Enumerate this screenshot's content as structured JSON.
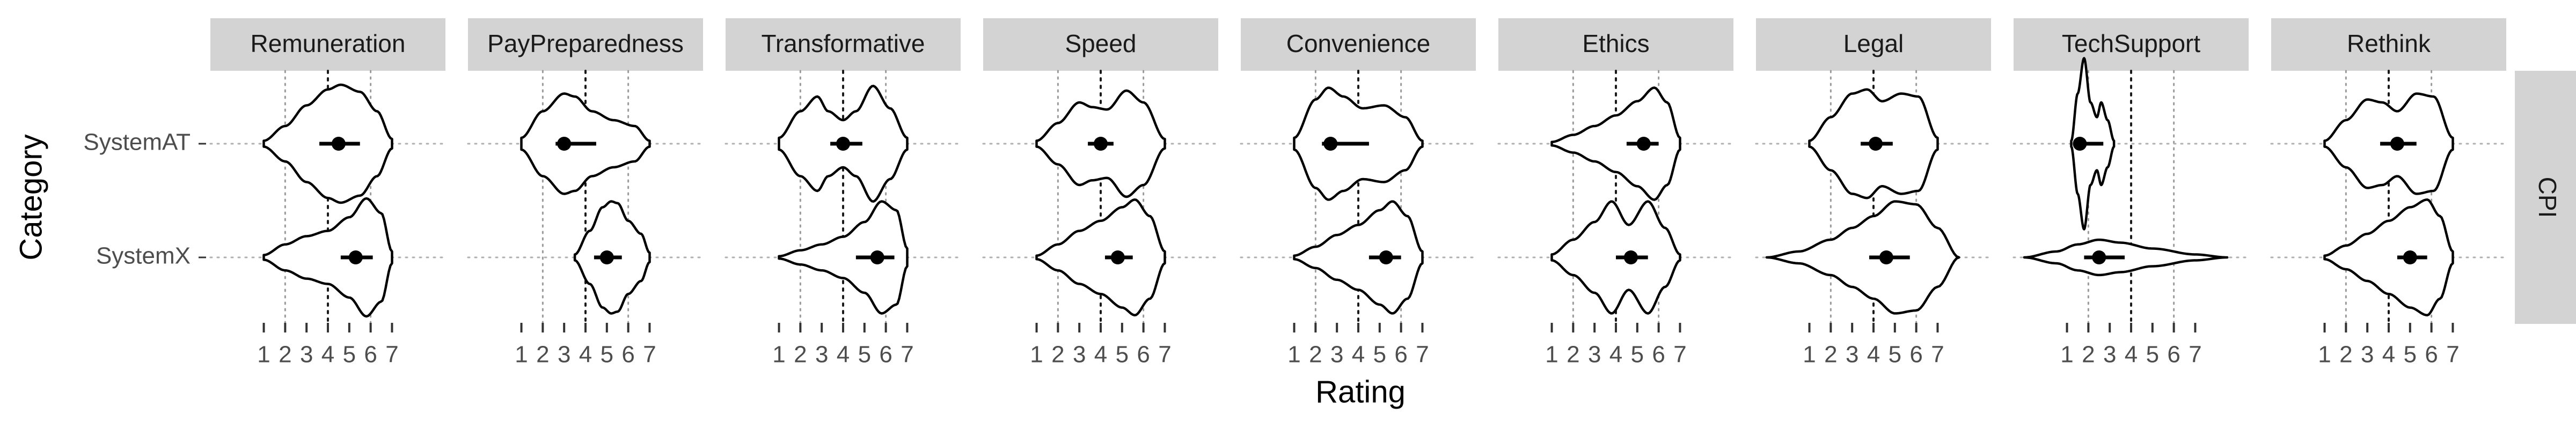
{
  "chart_data": {
    "type": "violin",
    "xlabel": "Rating",
    "ylabel": "Category",
    "row_strip": "CPI",
    "categories": [
      "SystemAT",
      "SystemX"
    ],
    "x_ticks": [
      1,
      2,
      3,
      4,
      5,
      6,
      7
    ],
    "x_tick_labels": [
      "1",
      "2",
      "3",
      "4",
      "5",
      "6",
      "7"
    ],
    "reference_lines": {
      "dotted": [
        2,
        6
      ],
      "dashed": [
        4
      ]
    },
    "panels": [
      {
        "name": "Remuneration",
        "xlim": [
          -1.5,
          9.5
        ],
        "midpoint": 4,
        "groups": [
          {
            "category": "SystemAT",
            "range": [
              1,
              7
            ],
            "mean": 4.5,
            "ci": [
              3.6,
              5.5
            ],
            "density": [
              [
                1,
                0.05
              ],
              [
                2,
                0.3
              ],
              [
                3,
                0.65
              ],
              [
                4,
                0.92
              ],
              [
                4.6,
                1.0
              ],
              [
                5.5,
                0.88
              ],
              [
                6.3,
                0.55
              ],
              [
                7,
                0.08
              ]
            ]
          },
          {
            "category": "SystemX",
            "range": [
              1,
              7
            ],
            "mean": 5.3,
            "ci": [
              4.6,
              6.1
            ],
            "density": [
              [
                1,
                0.04
              ],
              [
                2,
                0.22
              ],
              [
                3,
                0.36
              ],
              [
                4,
                0.45
              ],
              [
                5,
                0.68
              ],
              [
                5.8,
                1.0
              ],
              [
                6.5,
                0.75
              ],
              [
                7,
                0.1
              ]
            ]
          }
        ]
      },
      {
        "name": "PayPreparedness",
        "xlim": [
          -1.5,
          9.5
        ],
        "midpoint": 4,
        "groups": [
          {
            "category": "SystemAT",
            "range": [
              1,
              7
            ],
            "mean": 3.0,
            "ci": [
              2.6,
              4.5
            ],
            "density": [
              [
                1,
                0.1
              ],
              [
                2,
                0.55
              ],
              [
                3,
                0.85
              ],
              [
                3.5,
                0.8
              ],
              [
                4.3,
                0.55
              ],
              [
                5.3,
                0.4
              ],
              [
                6.3,
                0.3
              ],
              [
                7,
                0.05
              ]
            ]
          },
          {
            "category": "SystemX",
            "range": [
              3.5,
              7
            ],
            "mean": 5.0,
            "ci": [
              4.4,
              5.7
            ],
            "density": [
              [
                3.5,
                0.05
              ],
              [
                4.2,
                0.45
              ],
              [
                4.8,
                0.85
              ],
              [
                5.2,
                0.95
              ],
              [
                5.5,
                0.92
              ],
              [
                6,
                0.62
              ],
              [
                6.6,
                0.4
              ],
              [
                7,
                0.08
              ]
            ]
          }
        ]
      },
      {
        "name": "Transformative",
        "xlim": [
          -1.5,
          9.5
        ],
        "midpoint": 4,
        "groups": [
          {
            "category": "SystemAT",
            "range": [
              1,
              7
            ],
            "mean": 4.0,
            "ci": [
              3.4,
              4.9
            ],
            "density": [
              [
                1,
                0.1
              ],
              [
                2,
                0.55
              ],
              [
                2.8,
                0.8
              ],
              [
                3.3,
                0.55
              ],
              [
                4,
                0.4
              ],
              [
                4.6,
                0.55
              ],
              [
                5.4,
                0.98
              ],
              [
                6.2,
                0.6
              ],
              [
                7,
                0.1
              ]
            ]
          },
          {
            "category": "SystemX",
            "range": [
              1,
              7
            ],
            "mean": 5.6,
            "ci": [
              4.6,
              6.4
            ],
            "density": [
              [
                1,
                0.02
              ],
              [
                2,
                0.12
              ],
              [
                3,
                0.22
              ],
              [
                4,
                0.35
              ],
              [
                5,
                0.6
              ],
              [
                5.8,
                0.95
              ],
              [
                6.5,
                0.8
              ],
              [
                7,
                0.15
              ]
            ]
          }
        ]
      },
      {
        "name": "Speed",
        "xlim": [
          -1.5,
          9.5
        ],
        "midpoint": 4,
        "groups": [
          {
            "category": "SystemAT",
            "range": [
              1,
              7
            ],
            "mean": 4.0,
            "ci": [
              3.4,
              4.6
            ],
            "density": [
              [
                1,
                0.05
              ],
              [
                2,
                0.35
              ],
              [
                3,
                0.7
              ],
              [
                3.6,
                0.62
              ],
              [
                4.3,
                0.58
              ],
              [
                5.2,
                0.9
              ],
              [
                6,
                0.7
              ],
              [
                7,
                0.08
              ]
            ]
          },
          {
            "category": "SystemX",
            "range": [
              1,
              7
            ],
            "mean": 4.8,
            "ci": [
              4.2,
              5.5
            ],
            "density": [
              [
                1,
                0.03
              ],
              [
                2,
                0.22
              ],
              [
                3,
                0.45
              ],
              [
                4,
                0.62
              ],
              [
                5,
                0.85
              ],
              [
                5.6,
                0.98
              ],
              [
                6.3,
                0.7
              ],
              [
                7,
                0.1
              ]
            ]
          }
        ]
      },
      {
        "name": "Convenience",
        "xlim": [
          -1.5,
          9.5
        ],
        "midpoint": 4,
        "groups": [
          {
            "category": "SystemAT",
            "range": [
              1,
              7
            ],
            "mean": 2.7,
            "ci": [
              2.3,
              4.5
            ],
            "density": [
              [
                1,
                0.1
              ],
              [
                2,
                0.75
              ],
              [
                2.6,
                0.95
              ],
              [
                3.3,
                0.8
              ],
              [
                4.2,
                0.6
              ],
              [
                5.2,
                0.65
              ],
              [
                6.2,
                0.45
              ],
              [
                7,
                0.05
              ]
            ]
          },
          {
            "category": "SystemX",
            "range": [
              1,
              7
            ],
            "mean": 5.3,
            "ci": [
              4.5,
              6.0
            ],
            "density": [
              [
                1,
                0.03
              ],
              [
                2,
                0.18
              ],
              [
                3,
                0.38
              ],
              [
                4,
                0.55
              ],
              [
                5,
                0.8
              ],
              [
                5.6,
                0.95
              ],
              [
                6.3,
                0.7
              ],
              [
                7,
                0.1
              ]
            ]
          }
        ]
      },
      {
        "name": "Ethics",
        "xlim": [
          -1.5,
          9.5
        ],
        "midpoint": 4,
        "groups": [
          {
            "category": "SystemAT",
            "range": [
              1,
              7
            ],
            "mean": 5.3,
            "ci": [
              4.5,
              6.0
            ],
            "density": [
              [
                1,
                0.03
              ],
              [
                2,
                0.15
              ],
              [
                3,
                0.3
              ],
              [
                4,
                0.48
              ],
              [
                5,
                0.72
              ],
              [
                5.8,
                0.95
              ],
              [
                6.4,
                0.7
              ],
              [
                7,
                0.1
              ]
            ]
          },
          {
            "category": "SystemX",
            "range": [
              1,
              7
            ],
            "mean": 4.7,
            "ci": [
              4.0,
              5.5
            ],
            "density": [
              [
                1,
                0.05
              ],
              [
                2,
                0.3
              ],
              [
                3,
                0.6
              ],
              [
                3.8,
                0.95
              ],
              [
                4.6,
                0.55
              ],
              [
                5.5,
                0.95
              ],
              [
                6.3,
                0.5
              ],
              [
                7,
                0.05
              ]
            ]
          }
        ]
      },
      {
        "name": "Legal",
        "xlim": [
          -1.5,
          9.5
        ],
        "midpoint": 4,
        "groups": [
          {
            "category": "SystemAT",
            "range": [
              1,
              7
            ],
            "mean": 4.1,
            "ci": [
              3.4,
              4.9
            ],
            "density": [
              [
                1,
                0.05
              ],
              [
                2,
                0.45
              ],
              [
                3,
                0.85
              ],
              [
                3.7,
                0.92
              ],
              [
                4.4,
                0.72
              ],
              [
                5.3,
                0.85
              ],
              [
                6.1,
                0.8
              ],
              [
                7,
                0.1
              ]
            ]
          },
          {
            "category": "SystemX",
            "range": [
              -1,
              8
            ],
            "mean": 4.6,
            "ci": [
              3.8,
              5.7
            ],
            "density": [
              [
                -1,
                0.0
              ],
              [
                0.5,
                0.1
              ],
              [
                2,
                0.3
              ],
              [
                3,
                0.5
              ],
              [
                4,
                0.7
              ],
              [
                5,
                0.95
              ],
              [
                6,
                0.9
              ],
              [
                7,
                0.5
              ],
              [
                8,
                0.0
              ]
            ]
          }
        ]
      },
      {
        "name": "TechSupport",
        "xlim": [
          -1.5,
          9.5
        ],
        "midpoint": 4,
        "groups": [
          {
            "category": "SystemAT",
            "range": [
              1.2,
              3.2
            ],
            "mean": 1.6,
            "ci": [
              1.3,
              2.7
            ],
            "density": [
              [
                1.2,
                0.05
              ],
              [
                1.5,
                0.85
              ],
              [
                1.8,
                1.45
              ],
              [
                2.1,
                0.7
              ],
              [
                2.4,
                0.45
              ],
              [
                2.6,
                0.7
              ],
              [
                2.9,
                0.4
              ],
              [
                3.2,
                0.05
              ]
            ]
          },
          {
            "category": "SystemX",
            "range": [
              -1,
              8.5
            ],
            "mean": 2.5,
            "ci": [
              1.8,
              3.7
            ],
            "density": [
              [
                -1,
                0.0
              ],
              [
                0.5,
                0.1
              ],
              [
                1.5,
                0.22
              ],
              [
                2.5,
                0.3
              ],
              [
                3.5,
                0.25
              ],
              [
                5,
                0.15
              ],
              [
                7,
                0.05
              ],
              [
                8.5,
                0.0
              ]
            ]
          }
        ]
      },
      {
        "name": "Rethink",
        "xlim": [
          -1.5,
          9.5
        ],
        "midpoint": 4,
        "groups": [
          {
            "category": "SystemAT",
            "range": [
              1,
              7
            ],
            "mean": 4.4,
            "ci": [
              3.6,
              5.3
            ],
            "density": [
              [
                1,
                0.05
              ],
              [
                2,
                0.4
              ],
              [
                3,
                0.75
              ],
              [
                3.7,
                0.7
              ],
              [
                4.4,
                0.55
              ],
              [
                5.3,
                0.85
              ],
              [
                6.1,
                0.8
              ],
              [
                7,
                0.1
              ]
            ]
          },
          {
            "category": "SystemX",
            "range": [
              1,
              7
            ],
            "mean": 5.0,
            "ci": [
              4.4,
              5.8
            ],
            "density": [
              [
                1,
                0.03
              ],
              [
                2,
                0.2
              ],
              [
                3,
                0.4
              ],
              [
                4,
                0.62
              ],
              [
                5,
                0.85
              ],
              [
                5.8,
                0.98
              ],
              [
                6.4,
                0.7
              ],
              [
                7,
                0.1
              ]
            ]
          }
        ]
      }
    ]
  }
}
